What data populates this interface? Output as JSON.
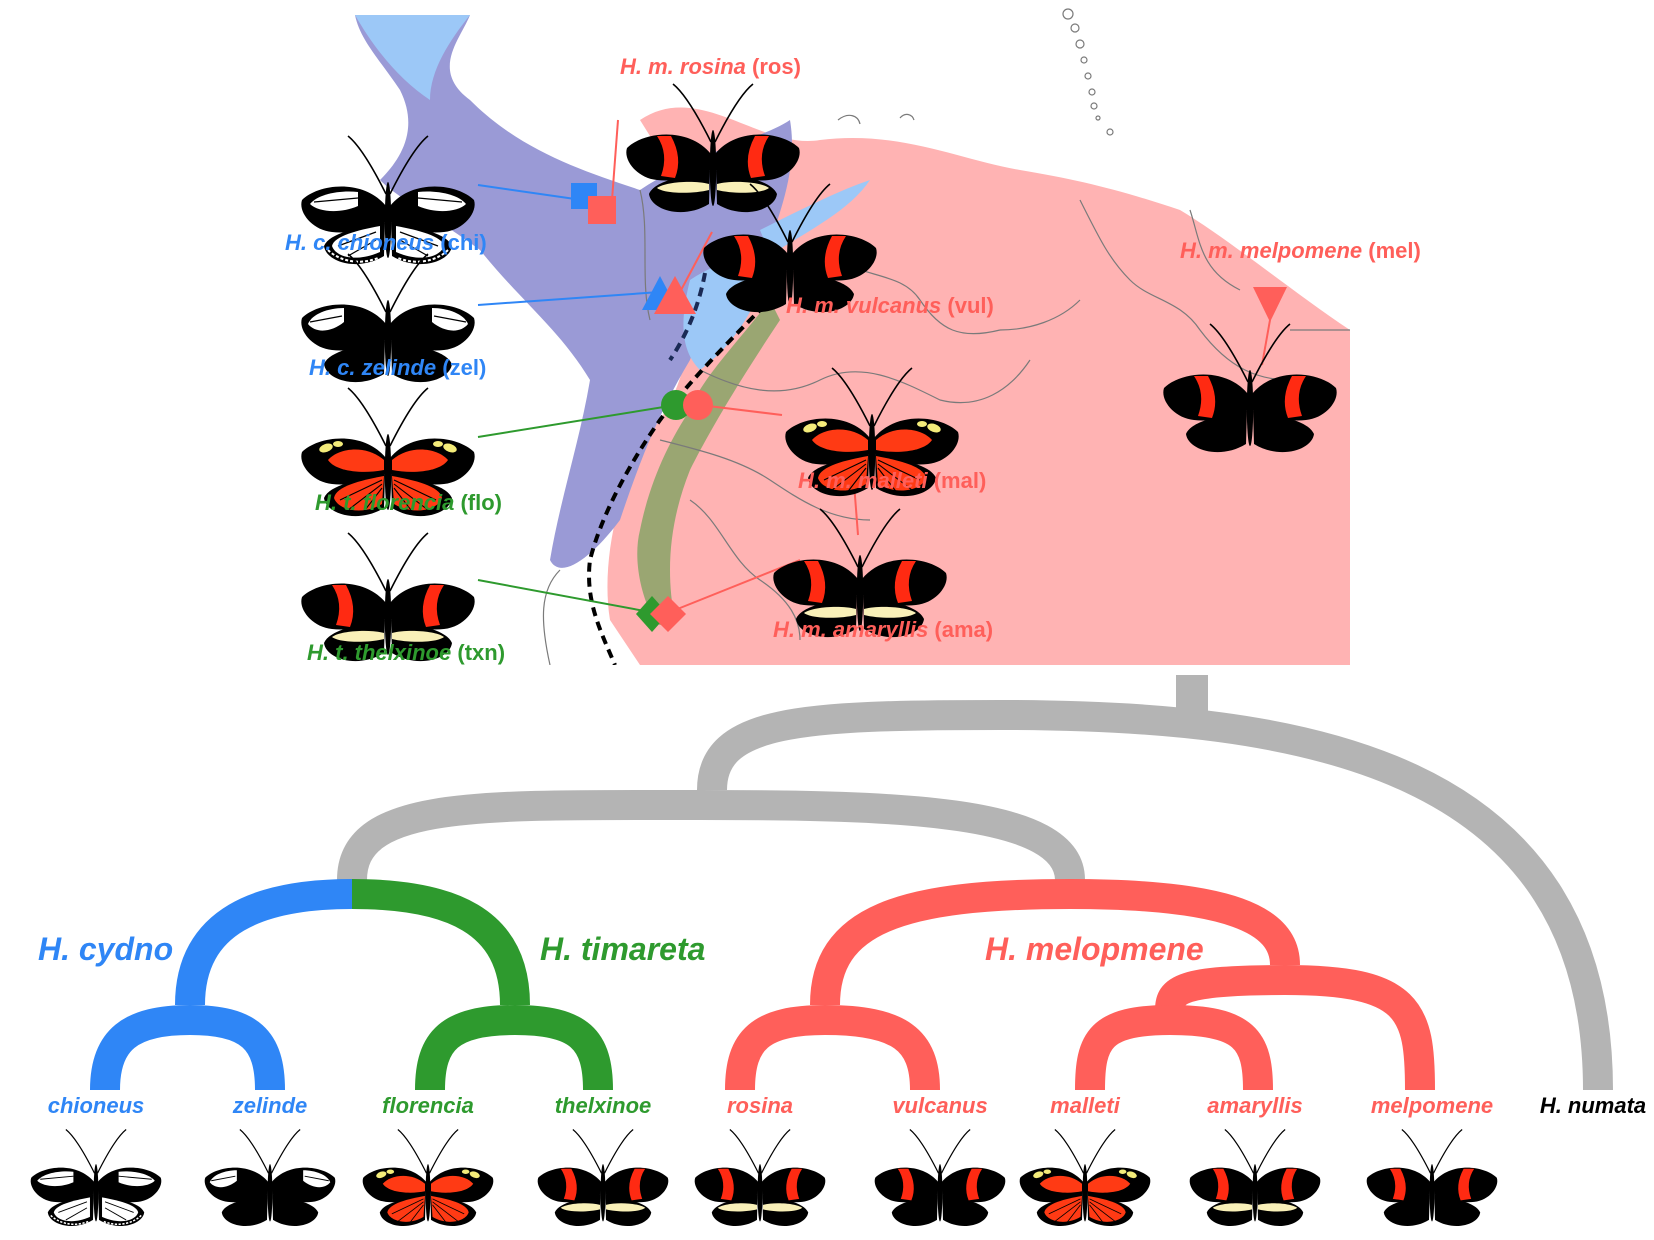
{
  "colors": {
    "cydno": "#2f86f6",
    "timareta": "#2e9a2e",
    "melpomene": "#ff5f5a",
    "outgroup": "#b4b4b4",
    "map_cydno": "#9a9ad6",
    "map_cydno_light": "#9cc8f7",
    "map_melpomene": "#ffb3b3",
    "map_timareta": "#8fa46a",
    "borders": "#7a7a7a",
    "text_black": "#000000"
  },
  "map": {
    "labels": {
      "ros": {
        "italic": "H. m. rosina",
        "code": " (ros)"
      },
      "chi": {
        "italic": "H. c. chioneus",
        "code": " (chi)"
      },
      "vul": {
        "italic": "H. m. vulcanus",
        "code": " (vul)"
      },
      "mel": {
        "italic": "H. m. melpomene",
        "code": " (mel)"
      },
      "zel": {
        "italic": "H. c. zelinde",
        "code": " (zel)"
      },
      "flo": {
        "italic": "H. t. florencia",
        "code": " (flo)"
      },
      "mal": {
        "italic": "H. m. malleti",
        "code": " (mal)"
      },
      "ama": {
        "italic": "H. m. amaryllis",
        "code": " (ama)"
      },
      "txn": {
        "italic": "H. t. thelxinoe",
        "code": " (txn)"
      }
    },
    "markers": {
      "chi": "square",
      "ros": "square",
      "zel": "triangle-up",
      "vul": "triangle-up",
      "flo": "circle",
      "mal": "circle",
      "txn": "diamond",
      "ama": "diamond",
      "mel": "triangle-down"
    },
    "wing_patterns": {
      "chi": "white-band-bordered",
      "ros": "red-band-yellow-bar",
      "zel": "white-patch",
      "vul": "red-band",
      "flo": "red-rays-yellow-spots",
      "mal": "red-rays-yellow-spots",
      "txn": "red-band-yellow-bar",
      "ama": "red-band-yellow-bar",
      "mel": "red-band"
    }
  },
  "tree": {
    "clades": {
      "cydno": "H. cydno",
      "timareta": "H. timareta",
      "melpomene": "H. melopmene"
    },
    "tips": [
      {
        "label": "chioneus",
        "group": "cydno",
        "pattern": "white-band-bordered"
      },
      {
        "label": "zelinde",
        "group": "cydno",
        "pattern": "white-patch"
      },
      {
        "label": "florencia",
        "group": "timareta",
        "pattern": "red-rays-yellow-spots"
      },
      {
        "label": "thelxinoe",
        "group": "timareta",
        "pattern": "red-band-yellow-bar"
      },
      {
        "label": "rosina",
        "group": "melpomene",
        "pattern": "red-band-yellow-bar"
      },
      {
        "label": "vulcanus",
        "group": "melpomene",
        "pattern": "red-band"
      },
      {
        "label": "malleti",
        "group": "melpomene",
        "pattern": "red-rays-yellow-spots"
      },
      {
        "label": "amaryllis",
        "group": "melpomene",
        "pattern": "red-band-yellow-bar"
      },
      {
        "label": "melpomene",
        "group": "melpomene",
        "pattern": "red-band"
      },
      {
        "label": "H. numata",
        "group": "outgroup",
        "pattern": "none"
      }
    ]
  }
}
